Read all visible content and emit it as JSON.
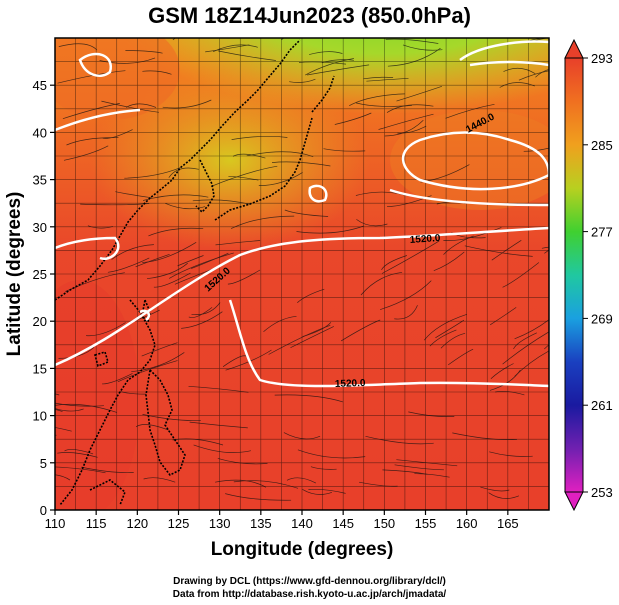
{
  "title": "GSM 18Z14Jun2023 (850.0hPa)",
  "x_axis_label": "Longitude (degrees)",
  "y_axis_label": "Latitude  (degrees)",
  "x_ticks": [
    "110",
    "115",
    "120",
    "125",
    "130",
    "135",
    "140",
    "145",
    "150",
    "155",
    "160",
    "165"
  ],
  "y_ticks": [
    "0",
    "5",
    "10",
    "15",
    "20",
    "25",
    "30",
    "35",
    "40",
    "45"
  ],
  "colorbar_ticks": [
    "293",
    "285",
    "277",
    "269",
    "261",
    "253"
  ],
  "contour_labels": [
    "1520.0",
    "1520.0",
    "1520.0",
    "1440.0"
  ],
  "credit_line1": "Drawing by DCL (https://www.gfd-dennou.org/library/dcl/)",
  "credit_line2": "Data from http://database.rish.kyoto-u.ac.jp/arch/jmadata/",
  "chart_data": {
    "type": "heatmap",
    "x_range": [
      110,
      170
    ],
    "y_range": [
      0,
      50
    ],
    "colorbar_range": [
      253,
      293
    ],
    "colors": {
      "warm": "#e8402a",
      "mid": "#f08a20",
      "yellow": "#d8d020",
      "green": "#6ad82a",
      "cyan": "#19c8c8",
      "blue": "#1a2ab0",
      "magenta": "#e020c0"
    }
  }
}
